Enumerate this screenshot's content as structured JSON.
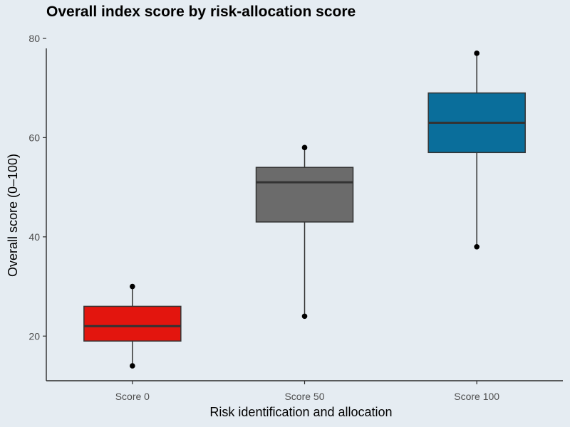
{
  "chart_data": {
    "type": "box",
    "title": "Overall index score by risk-allocation score",
    "xlabel": "Risk identification and allocation",
    "ylabel": "Overall score (0–100)",
    "ylim": [
      11,
      82
    ],
    "yticks": [
      20,
      40,
      60,
      80
    ],
    "grid": false,
    "categories": [
      "Score 0",
      "Score 50",
      "Score 100"
    ],
    "boxes": [
      {
        "category": "Score 0",
        "whisker_low": 14,
        "q1": 19,
        "median": 22,
        "q3": 26,
        "whisker_high": 30,
        "points": [
          14,
          30
        ],
        "color": "#e3150e"
      },
      {
        "category": "Score 50",
        "whisker_low": 24,
        "q1": 43,
        "median": 51,
        "q3": 54,
        "whisker_high": 58,
        "points": [
          24,
          58
        ],
        "color": "#6b6b6b"
      },
      {
        "category": "Score 100",
        "whisker_low": 38,
        "q1": 57,
        "median": 63,
        "q3": 69,
        "whisker_high": 77,
        "points": [
          38,
          77
        ],
        "color": "#0a6e9b"
      }
    ]
  }
}
